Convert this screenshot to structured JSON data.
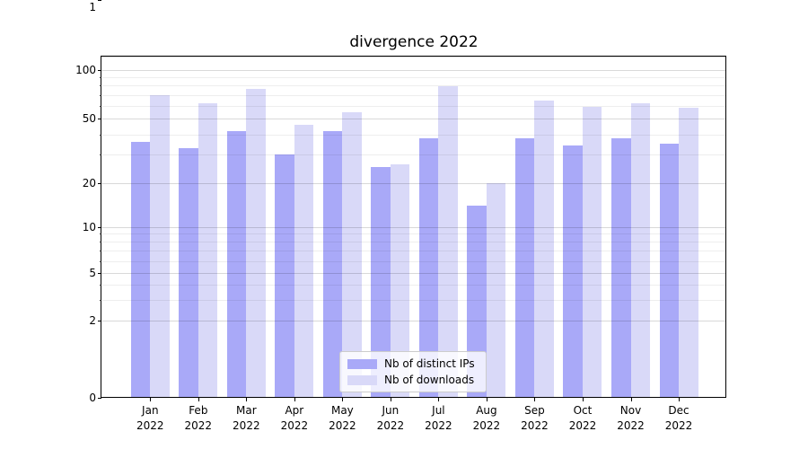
{
  "chart_data": {
    "type": "bar",
    "title": "divergence 2022",
    "categories": [
      {
        "month": "Jan",
        "year": "2022"
      },
      {
        "month": "Feb",
        "year": "2022"
      },
      {
        "month": "Mar",
        "year": "2022"
      },
      {
        "month": "Apr",
        "year": "2022"
      },
      {
        "month": "May",
        "year": "2022"
      },
      {
        "month": "Jun",
        "year": "2022"
      },
      {
        "month": "Jul",
        "year": "2022"
      },
      {
        "month": "Aug",
        "year": "2022"
      },
      {
        "month": "Sep",
        "year": "2022"
      },
      {
        "month": "Oct",
        "year": "2022"
      },
      {
        "month": "Nov",
        "year": "2022"
      },
      {
        "month": "Dec",
        "year": "2022"
      }
    ],
    "series": [
      {
        "name": "Nb of distinct IPs",
        "color": "#a9a9f8",
        "values": [
          36,
          33,
          42,
          30,
          42,
          25,
          38,
          14,
          38,
          34,
          38,
          35
        ]
      },
      {
        "name": "Nb of downloads",
        "color": "#d9d9f8",
        "values": [
          70,
          62,
          76,
          46,
          55,
          26,
          79,
          20,
          65,
          59,
          62,
          58
        ]
      }
    ],
    "xlabel": "",
    "ylabel": "",
    "yscale": "symlog",
    "ylim": [
      0,
      120
    ],
    "y_major_ticks": [
      0,
      1,
      2,
      5,
      10,
      20,
      50,
      100
    ],
    "y_minor_ticks": [
      3,
      4,
      6,
      7,
      8,
      9,
      30,
      40,
      60,
      70,
      80,
      90
    ],
    "grid": true,
    "legend_position": "lower center"
  },
  "colors": {
    "grid_major": "rgba(0,0,0,0.15)",
    "grid_minor": "rgba(0,0,0,0.065)",
    "spine": "#000000",
    "text": "#000000",
    "legend_border": "#cccccc"
  }
}
